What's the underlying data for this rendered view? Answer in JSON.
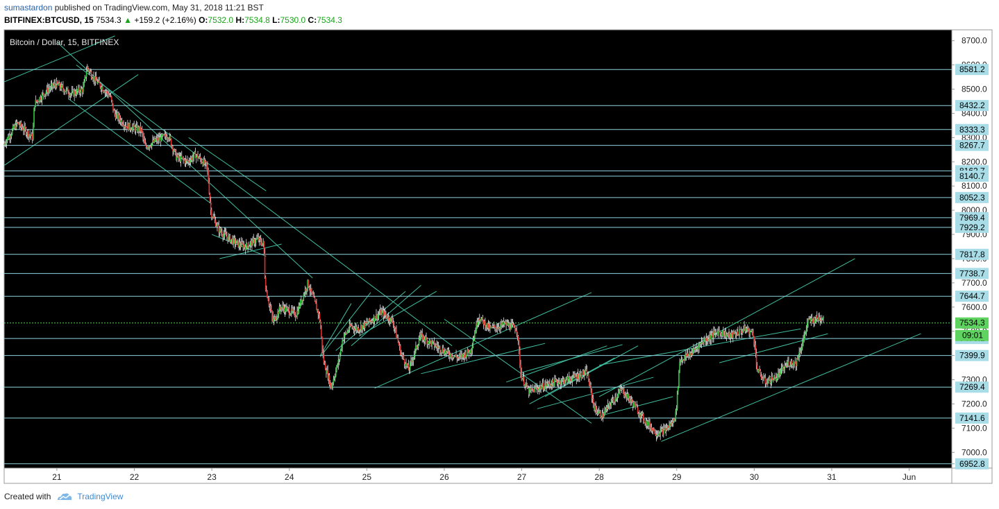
{
  "header": {
    "author": "sumastardon",
    "published_text": "published on TradingView.com, May 31, 2018 11:21 BST",
    "symbol": "BITFINEX:BTCUSD, 15",
    "last": "7534.3",
    "change_arrow_icon": "triangle-up-icon",
    "change": "+159.2 (+2.16%)",
    "o_label": "O:",
    "o_value": "7532.0",
    "h_label": "H:",
    "h_value": "7534.8",
    "l_label": "L:",
    "l_value": "7530.0",
    "c_label": "C:",
    "c_value": "7534.3"
  },
  "footer": {
    "created_with": "Created with",
    "logo_icon": "tradingview-cloud-icon",
    "brand": "TradingView"
  },
  "chart_data": {
    "type": "candlestick",
    "title": "Bitcoin / Dollar, 15, BITFINEX",
    "y_ticks": [
      "8700.0",
      "8600.0",
      "8500.0",
      "8400.0",
      "8300.0",
      "8200.0",
      "8100.0",
      "8000.0",
      "7900.0",
      "7800.0",
      "7700.0",
      "7600.0",
      "7500.0",
      "7400.0",
      "7300.0",
      "7200.0",
      "7100.0",
      "7000.0",
      "6952.8"
    ],
    "x_ticks": [
      {
        "label": "21",
        "t": 0.0
      },
      {
        "label": "22",
        "t": 1.0
      },
      {
        "label": "23",
        "t": 2.0
      },
      {
        "label": "24",
        "t": 3.0
      },
      {
        "label": "25",
        "t": 4.0
      },
      {
        "label": "26",
        "t": 5.0
      },
      {
        "label": "27",
        "t": 6.0
      },
      {
        "label": "28",
        "t": 7.0
      },
      {
        "label": "29",
        "t": 8.0
      },
      {
        "label": "30",
        "t": 9.0
      },
      {
        "label": "31",
        "t": 10.0
      },
      {
        "label": "Jun",
        "t": 11.0
      }
    ],
    "ylim": [
      6935,
      8745
    ],
    "xlim": [
      -0.68,
      11.55
    ],
    "current_price": "7534.3",
    "countdown": "09:01",
    "horizontal_levels": [
      "8581.2",
      "8432.2",
      "8333.3",
      "8267.7",
      "8162.7",
      "8140.7",
      "8052.3",
      "7969.4",
      "7929.2",
      "7817.8",
      "7738.7",
      "7644.7",
      "7470.2",
      "7399.9",
      "7269.4",
      "7141.6",
      "6952.8"
    ],
    "colors": {
      "background": "#000000",
      "up": "#2ecc40",
      "down": "#e03030",
      "level": "#8fd3e0",
      "trend": "#3fbfa0",
      "current": "#5fd35f",
      "axis_bg": "#ffffff"
    },
    "trendlines": [
      {
        "x1": -0.68,
        "y1": 8530,
        "x2": 0.75,
        "y2": 8720
      },
      {
        "x1": -0.68,
        "y1": 8185,
        "x2": 1.05,
        "y2": 8560
      },
      {
        "x1": 0.0,
        "y1": 8695,
        "x2": 3.3,
        "y2": 7720
      },
      {
        "x1": 0.25,
        "y1": 8600,
        "x2": 5.1,
        "y2": 7440
      },
      {
        "x1": 0.15,
        "y1": 8460,
        "x2": 2.0,
        "y2": 8025
      },
      {
        "x1": 1.7,
        "y1": 8300,
        "x2": 2.7,
        "y2": 8080
      },
      {
        "x1": 2.0,
        "y1": 7900,
        "x2": 2.7,
        "y2": 7810
      },
      {
        "x1": 2.1,
        "y1": 7800,
        "x2": 2.9,
        "y2": 7860
      },
      {
        "x1": 3.4,
        "y1": 7400,
        "x2": 3.8,
        "y2": 7615
      },
      {
        "x1": 3.4,
        "y1": 7395,
        "x2": 4.05,
        "y2": 7660
      },
      {
        "x1": 3.6,
        "y1": 7420,
        "x2": 4.5,
        "y2": 7665
      },
      {
        "x1": 3.8,
        "y1": 7440,
        "x2": 4.7,
        "y2": 7690
      },
      {
        "x1": 3.9,
        "y1": 7480,
        "x2": 4.9,
        "y2": 7665
      },
      {
        "x1": 4.1,
        "y1": 7265,
        "x2": 6.9,
        "y2": 7660
      },
      {
        "x1": 4.7,
        "y1": 7325,
        "x2": 6.3,
        "y2": 7450
      },
      {
        "x1": 5.0,
        "y1": 7550,
        "x2": 6.9,
        "y2": 7120
      },
      {
        "x1": 5.8,
        "y1": 7290,
        "x2": 7.1,
        "y2": 7440
      },
      {
        "x1": 6.1,
        "y1": 7200,
        "x2": 7.2,
        "y2": 7390
      },
      {
        "x1": 6.3,
        "y1": 7230,
        "x2": 7.5,
        "y2": 7440
      },
      {
        "x1": 6.0,
        "y1": 7330,
        "x2": 7.3,
        "y2": 7445
      },
      {
        "x1": 6.2,
        "y1": 7180,
        "x2": 7.7,
        "y2": 7310
      },
      {
        "x1": 7.0,
        "y1": 7150,
        "x2": 7.95,
        "y2": 7230
      },
      {
        "x1": 7.0,
        "y1": 7360,
        "x2": 9.6,
        "y2": 7510
      },
      {
        "x1": 7.0,
        "y1": 7230,
        "x2": 10.3,
        "y2": 7800
      },
      {
        "x1": 8.55,
        "y1": 7370,
        "x2": 9.95,
        "y2": 7490
      },
      {
        "x1": 7.8,
        "y1": 7045,
        "x2": 11.15,
        "y2": 7490
      }
    ],
    "path_anchors": [
      [
        -0.68,
        8270
      ],
      [
        -0.5,
        8360
      ],
      [
        -0.3,
        8300
      ],
      [
        -0.28,
        8440
      ],
      [
        -0.1,
        8500
      ],
      [
        0.0,
        8520
      ],
      [
        0.2,
        8480
      ],
      [
        0.35,
        8500
      ],
      [
        0.4,
        8590
      ],
      [
        0.5,
        8540
      ],
      [
        0.7,
        8470
      ],
      [
        0.75,
        8400
      ],
      [
        0.9,
        8350
      ],
      [
        1.1,
        8330
      ],
      [
        1.15,
        8260
      ],
      [
        1.3,
        8290
      ],
      [
        1.45,
        8310
      ],
      [
        1.55,
        8220
      ],
      [
        1.7,
        8200
      ],
      [
        1.8,
        8230
      ],
      [
        1.95,
        8180
      ],
      [
        2.0,
        7990
      ],
      [
        2.1,
        7920
      ],
      [
        2.2,
        7890
      ],
      [
        2.35,
        7860
      ],
      [
        2.45,
        7850
      ],
      [
        2.6,
        7880
      ],
      [
        2.68,
        7860
      ],
      [
        2.7,
        7690
      ],
      [
        2.8,
        7540
      ],
      [
        2.9,
        7600
      ],
      [
        3.1,
        7570
      ],
      [
        3.25,
        7700
      ],
      [
        3.4,
        7560
      ],
      [
        3.45,
        7380
      ],
      [
        3.55,
        7270
      ],
      [
        3.65,
        7380
      ],
      [
        3.7,
        7470
      ],
      [
        3.8,
        7520
      ],
      [
        3.9,
        7510
      ],
      [
        4.05,
        7540
      ],
      [
        4.2,
        7580
      ],
      [
        4.35,
        7540
      ],
      [
        4.45,
        7410
      ],
      [
        4.55,
        7340
      ],
      [
        4.7,
        7480
      ],
      [
        4.9,
        7440
      ],
      [
        5.05,
        7410
      ],
      [
        5.2,
        7390
      ],
      [
        5.35,
        7420
      ],
      [
        5.45,
        7560
      ],
      [
        5.6,
        7510
      ],
      [
        5.8,
        7530
      ],
      [
        5.95,
        7510
      ],
      [
        6.0,
        7320
      ],
      [
        6.1,
        7250
      ],
      [
        6.25,
        7270
      ],
      [
        6.45,
        7290
      ],
      [
        6.6,
        7300
      ],
      [
        6.85,
        7330
      ],
      [
        6.95,
        7180
      ],
      [
        7.05,
        7150
      ],
      [
        7.15,
        7200
      ],
      [
        7.3,
        7260
      ],
      [
        7.45,
        7200
      ],
      [
        7.6,
        7130
      ],
      [
        7.75,
        7080
      ],
      [
        7.85,
        7090
      ],
      [
        7.95,
        7120
      ],
      [
        8.0,
        7160
      ],
      [
        8.05,
        7380
      ],
      [
        8.2,
        7410
      ],
      [
        8.35,
        7460
      ],
      [
        8.55,
        7500
      ],
      [
        8.7,
        7480
      ],
      [
        8.9,
        7510
      ],
      [
        9.0,
        7490
      ],
      [
        9.05,
        7340
      ],
      [
        9.15,
        7290
      ],
      [
        9.3,
        7310
      ],
      [
        9.45,
        7370
      ],
      [
        9.55,
        7370
      ],
      [
        9.65,
        7470
      ],
      [
        9.7,
        7540
      ],
      [
        9.9,
        7560
      ]
    ]
  }
}
